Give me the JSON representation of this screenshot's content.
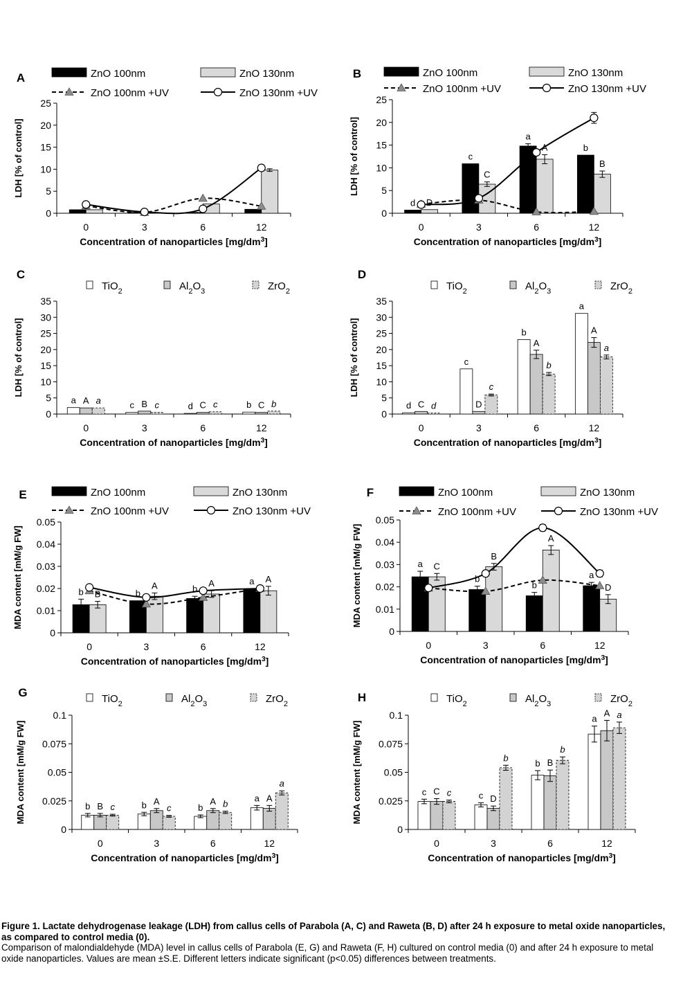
{
  "caption": {
    "title": "Figure 1. Lactate dehydrogenase leakage (LDH) from callus cells of Parabola (A, C) and Raweta (B, D) after 24 h exposure to metal oxide nanoparticles, as compared to control media (0).",
    "text": "Comparison of malondialdehyde (MDA) level in callus cells of Parabola (E, G) and Raweta (F, H) cultured on control media (0) and after 24 h exposure to metal oxide nanoparticles. Values are mean ±S.E. Different letters indicate significant (p<0.05) differences between treatments."
  },
  "chart_data": [
    {
      "panel": "A",
      "type": "bar+line",
      "categories": [
        "0",
        "3",
        "6",
        "12"
      ],
      "xlabel": "Concentration of nanoparticles [mg/dm³]",
      "ylabel": "LDH [% of control]",
      "ylim": [
        0,
        25
      ],
      "yticks": [
        "0",
        "5",
        "10",
        "15",
        "20",
        "25"
      ],
      "series": [
        {
          "name": "ZnO 100nm",
          "kind": "bar",
          "color": "#000000",
          "values": [
            0.8,
            0.2,
            0.2,
            0.9
          ],
          "err": [
            0,
            0,
            0,
            0
          ],
          "letters": [
            "",
            "",
            "",
            ""
          ]
        },
        {
          "name": "ZnO 130nm",
          "kind": "bar",
          "color": "#d9d9d9",
          "values": [
            0.8,
            0.1,
            2.1,
            9.8
          ],
          "err": [
            0,
            0,
            0,
            0.3
          ],
          "letters": [
            "",
            "",
            "",
            ""
          ]
        },
        {
          "name": "ZnO 100nm +UV",
          "kind": "line",
          "dash": true,
          "marker": "triangle",
          "values": [
            1.7,
            0.2,
            3.4,
            1.6
          ]
        },
        {
          "name": "ZnO 130nm +UV",
          "kind": "line",
          "dash": false,
          "marker": "circle",
          "values": [
            2.0,
            0.3,
            1.0,
            10.3
          ]
        }
      ]
    },
    {
      "panel": "B",
      "type": "bar+line",
      "categories": [
        "0",
        "3",
        "6",
        "12"
      ],
      "xlabel": "Concentration of nanoparticles [mg/dm³]",
      "ylabel": "LDH [% of control]",
      "ylim": [
        0,
        25
      ],
      "yticks": [
        "0",
        "5",
        "10",
        "15",
        "20",
        "25"
      ],
      "series": [
        {
          "name": "ZnO 100nm",
          "kind": "bar",
          "color": "#000000",
          "values": [
            0.7,
            10.9,
            14.8,
            12.8
          ],
          "err": [
            0,
            0,
            0.5,
            0
          ],
          "letters": [
            "d",
            "c",
            "a",
            "b"
          ]
        },
        {
          "name": "ZnO 130nm",
          "kind": "bar",
          "color": "#d9d9d9",
          "values": [
            0.8,
            6.4,
            11.9,
            8.6
          ],
          "err": [
            0,
            0.5,
            1.0,
            0.7
          ],
          "letters": [
            "D",
            "C",
            "A",
            "B"
          ]
        },
        {
          "name": "ZnO 100nm +UV",
          "kind": "line",
          "dash": true,
          "marker": "triangle",
          "values": [
            2.0,
            2.9,
            0.3,
            0.4
          ]
        },
        {
          "name": "ZnO 130nm +UV",
          "kind": "line",
          "dash": false,
          "marker": "circle",
          "values": [
            1.9,
            3.3,
            13.4,
            21.0
          ],
          "err": [
            0,
            0,
            0,
            1.2
          ]
        }
      ]
    },
    {
      "panel": "C",
      "type": "bar",
      "categories": [
        "0",
        "3",
        "6",
        "12"
      ],
      "xlabel": "Concentration of nanoparticles [mg/dm³]",
      "ylabel": "LDH [% of control]",
      "ylim": [
        0,
        35
      ],
      "yticks": [
        "0",
        "5",
        "10",
        "15",
        "20",
        "25",
        "30",
        "35"
      ],
      "series": [
        {
          "name": "TiO2",
          "fill": "#ffffff",
          "dashed": false,
          "values": [
            2.0,
            0.5,
            0.2,
            0.6
          ],
          "err": [
            0,
            0,
            0,
            0
          ],
          "letters": [
            "a",
            "c",
            "d",
            "b"
          ],
          "italic": false
        },
        {
          "name": "Al2O3",
          "fill": "#c8c8c8",
          "dashed": false,
          "values": [
            1.9,
            0.9,
            0.5,
            0.5
          ],
          "err": [
            0,
            0,
            0,
            0
          ],
          "letters": [
            "A",
            "B",
            "C",
            "C"
          ],
          "italic": false
        },
        {
          "name": "ZrO2",
          "fill": "#d3d3d3",
          "dashed": true,
          "values": [
            1.9,
            0.5,
            0.7,
            0.9
          ],
          "err": [
            0,
            0,
            0,
            0
          ],
          "letters": [
            "a",
            "c",
            "c",
            "b"
          ],
          "italic": true
        }
      ]
    },
    {
      "panel": "D",
      "type": "bar",
      "categories": [
        "0",
        "3",
        "6",
        "12"
      ],
      "xlabel": "Concentration of nanoparticles [mg/dm³]",
      "ylabel": "LDH [% of control]",
      "ylim": [
        0,
        35
      ],
      "yticks": [
        "0",
        "5",
        "10",
        "15",
        "20",
        "25",
        "30",
        "35"
      ],
      "series": [
        {
          "name": "TiO2",
          "fill": "#ffffff",
          "dashed": false,
          "values": [
            0.4,
            14.0,
            23.1,
            31.2
          ],
          "err": [
            0,
            0,
            0,
            0
          ],
          "letters": [
            "d",
            "c",
            "b",
            "a"
          ],
          "italic": false
        },
        {
          "name": "Al2O3",
          "fill": "#c8c8c8",
          "dashed": false,
          "values": [
            0.8,
            0.8,
            18.5,
            22.2
          ],
          "err": [
            0,
            0,
            1.3,
            1.5
          ],
          "letters": [
            "C",
            "D",
            "A",
            "A"
          ],
          "italic": false
        },
        {
          "name": "ZrO2",
          "fill": "#d3d3d3",
          "dashed": true,
          "values": [
            0.3,
            5.9,
            12.4,
            17.7
          ],
          "err": [
            0,
            0.3,
            0.5,
            0.6
          ],
          "letters": [
            "d",
            "c",
            "b",
            "a"
          ],
          "italic": true
        }
      ]
    },
    {
      "panel": "E",
      "type": "bar+line",
      "categories": [
        "0",
        "3",
        "6",
        "12"
      ],
      "xlabel": "Concentration of nanoparticles [mg/dm³]",
      "ylabel": "MDA content [mM/g FW]",
      "ylim": [
        0,
        0.05
      ],
      "yticks": [
        "0",
        "0.01",
        "0.02",
        "0.03",
        "0.04",
        "0.05"
      ],
      "series": [
        {
          "name": "ZnO 100nm",
          "kind": "bar",
          "color": "#000000",
          "values": [
            0.0127,
            0.0145,
            0.0155,
            0.0195
          ],
          "err": [
            0.0025,
            0,
            0.001,
            0.0005
          ],
          "letters": [
            "b",
            "b",
            "b",
            "a"
          ]
        },
        {
          "name": "ZnO 130nm",
          "kind": "bar",
          "color": "#d9d9d9",
          "values": [
            0.0127,
            0.0165,
            0.0175,
            0.019
          ],
          "err": [
            0.0015,
            0.0015,
            0.0015,
            0.002
          ],
          "letters": [
            "B",
            "A",
            "A",
            "A"
          ]
        },
        {
          "name": "ZnO 100nm +UV",
          "kind": "line",
          "dash": true,
          "marker": "triangle",
          "values": [
            0.019,
            0.013,
            0.016,
            0.02
          ]
        },
        {
          "name": "ZnO 130nm +UV",
          "kind": "line",
          "dash": false,
          "marker": "circle",
          "values": [
            0.0205,
            0.016,
            0.019,
            0.02
          ],
          "err": [
            0.001,
            0,
            0.001,
            0
          ]
        }
      ]
    },
    {
      "panel": "F",
      "type": "bar+line",
      "categories": [
        "0",
        "3",
        "6",
        "12"
      ],
      "xlabel": "Concentration of nanoparticles [mg/dm³]",
      "ylabel": "MDA content [mM/g FW]",
      "ylim": [
        0,
        0.05
      ],
      "yticks": [
        "0",
        "0.01",
        "0.02",
        "0.03",
        "0.04",
        "0.05"
      ],
      "series": [
        {
          "name": "ZnO 100nm",
          "kind": "bar",
          "color": "#000000",
          "values": [
            0.0245,
            0.0188,
            0.016,
            0.0205
          ],
          "err": [
            0.0025,
            0.0015,
            0.0015,
            0.0015
          ],
          "letters": [
            "a",
            "b",
            "b",
            "a"
          ]
        },
        {
          "name": "ZnO 130nm",
          "kind": "bar",
          "color": "#d9d9d9",
          "values": [
            0.0245,
            0.029,
            0.0365,
            0.0145
          ],
          "err": [
            0.0015,
            0.0015,
            0.002,
            0.002
          ],
          "letters": [
            "C",
            "B",
            "A",
            "D"
          ]
        },
        {
          "name": "ZnO 100nm +UV",
          "kind": "line",
          "dash": true,
          "marker": "triangle",
          "values": [
            0.0195,
            0.018,
            0.023,
            0.0205
          ]
        },
        {
          "name": "ZnO 130nm +UV",
          "kind": "line",
          "dash": false,
          "marker": "circle",
          "values": [
            0.0195,
            0.026,
            0.0465,
            0.026
          ],
          "err": [
            0,
            0,
            0.0015,
            0.0015
          ]
        }
      ]
    },
    {
      "panel": "G",
      "type": "bar",
      "categories": [
        "0",
        "3",
        "6",
        "12"
      ],
      "xlabel": "Concentration of nanoparticles [mg/dm³]",
      "ylabel": "MDA content [mM/g FW]",
      "ylim": [
        0,
        0.1
      ],
      "yticks": [
        "0",
        "0.025",
        "0.05",
        "0.075",
        "0.1"
      ],
      "series": [
        {
          "name": "TiO2",
          "fill": "#ffffff",
          "dashed": false,
          "values": [
            0.0125,
            0.0135,
            0.0115,
            0.019
          ],
          "err": [
            0.0015,
            0.0015,
            0.0012,
            0.002
          ],
          "letters": [
            "b",
            "b",
            "b",
            "a"
          ],
          "italic": false
        },
        {
          "name": "Al2O3",
          "fill": "#c8c8c8",
          "dashed": false,
          "values": [
            0.0125,
            0.0165,
            0.0165,
            0.0185
          ],
          "err": [
            0.0015,
            0.0018,
            0.0018,
            0.0025
          ],
          "letters": [
            "B",
            "A",
            "A",
            "A"
          ],
          "italic": false
        },
        {
          "name": "ZrO2",
          "fill": "#d3d3d3",
          "dashed": true,
          "values": [
            0.0125,
            0.0115,
            0.015,
            0.032
          ],
          "err": [
            0.0008,
            0.0008,
            0.001,
            0.0018
          ],
          "letters": [
            "c",
            "c",
            "b",
            "a"
          ],
          "italic": true
        }
      ]
    },
    {
      "panel": "H",
      "type": "bar",
      "categories": [
        "0",
        "3",
        "6",
        "12"
      ],
      "xlabel": "Concentration of nanoparticles [mg/dm³]",
      "ylabel": "MDA content [mM/g FW]",
      "ylim": [
        0,
        0.1
      ],
      "yticks": [
        "0",
        "0.025",
        "0.05",
        "0.075",
        "0.1"
      ],
      "series": [
        {
          "name": "TiO2",
          "fill": "#ffffff",
          "dashed": false,
          "values": [
            0.0245,
            0.0215,
            0.0475,
            0.0835
          ],
          "err": [
            0.002,
            0.0018,
            0.004,
            0.007
          ],
          "letters": [
            "c",
            "c",
            "b",
            "a"
          ],
          "italic": false
        },
        {
          "name": "Al2O3",
          "fill": "#c8c8c8",
          "dashed": false,
          "values": [
            0.0245,
            0.0185,
            0.047,
            0.0865
          ],
          "err": [
            0.0025,
            0.002,
            0.005,
            0.009
          ],
          "letters": [
            "C",
            "D",
            "B",
            "A"
          ],
          "italic": false
        },
        {
          "name": "ZrO2",
          "fill": "#d3d3d3",
          "dashed": true,
          "values": [
            0.0245,
            0.054,
            0.0605,
            0.089
          ],
          "err": [
            0.0012,
            0.0022,
            0.003,
            0.005
          ],
          "letters": [
            "c",
            "b",
            "b",
            "a"
          ],
          "italic": true
        }
      ]
    }
  ]
}
